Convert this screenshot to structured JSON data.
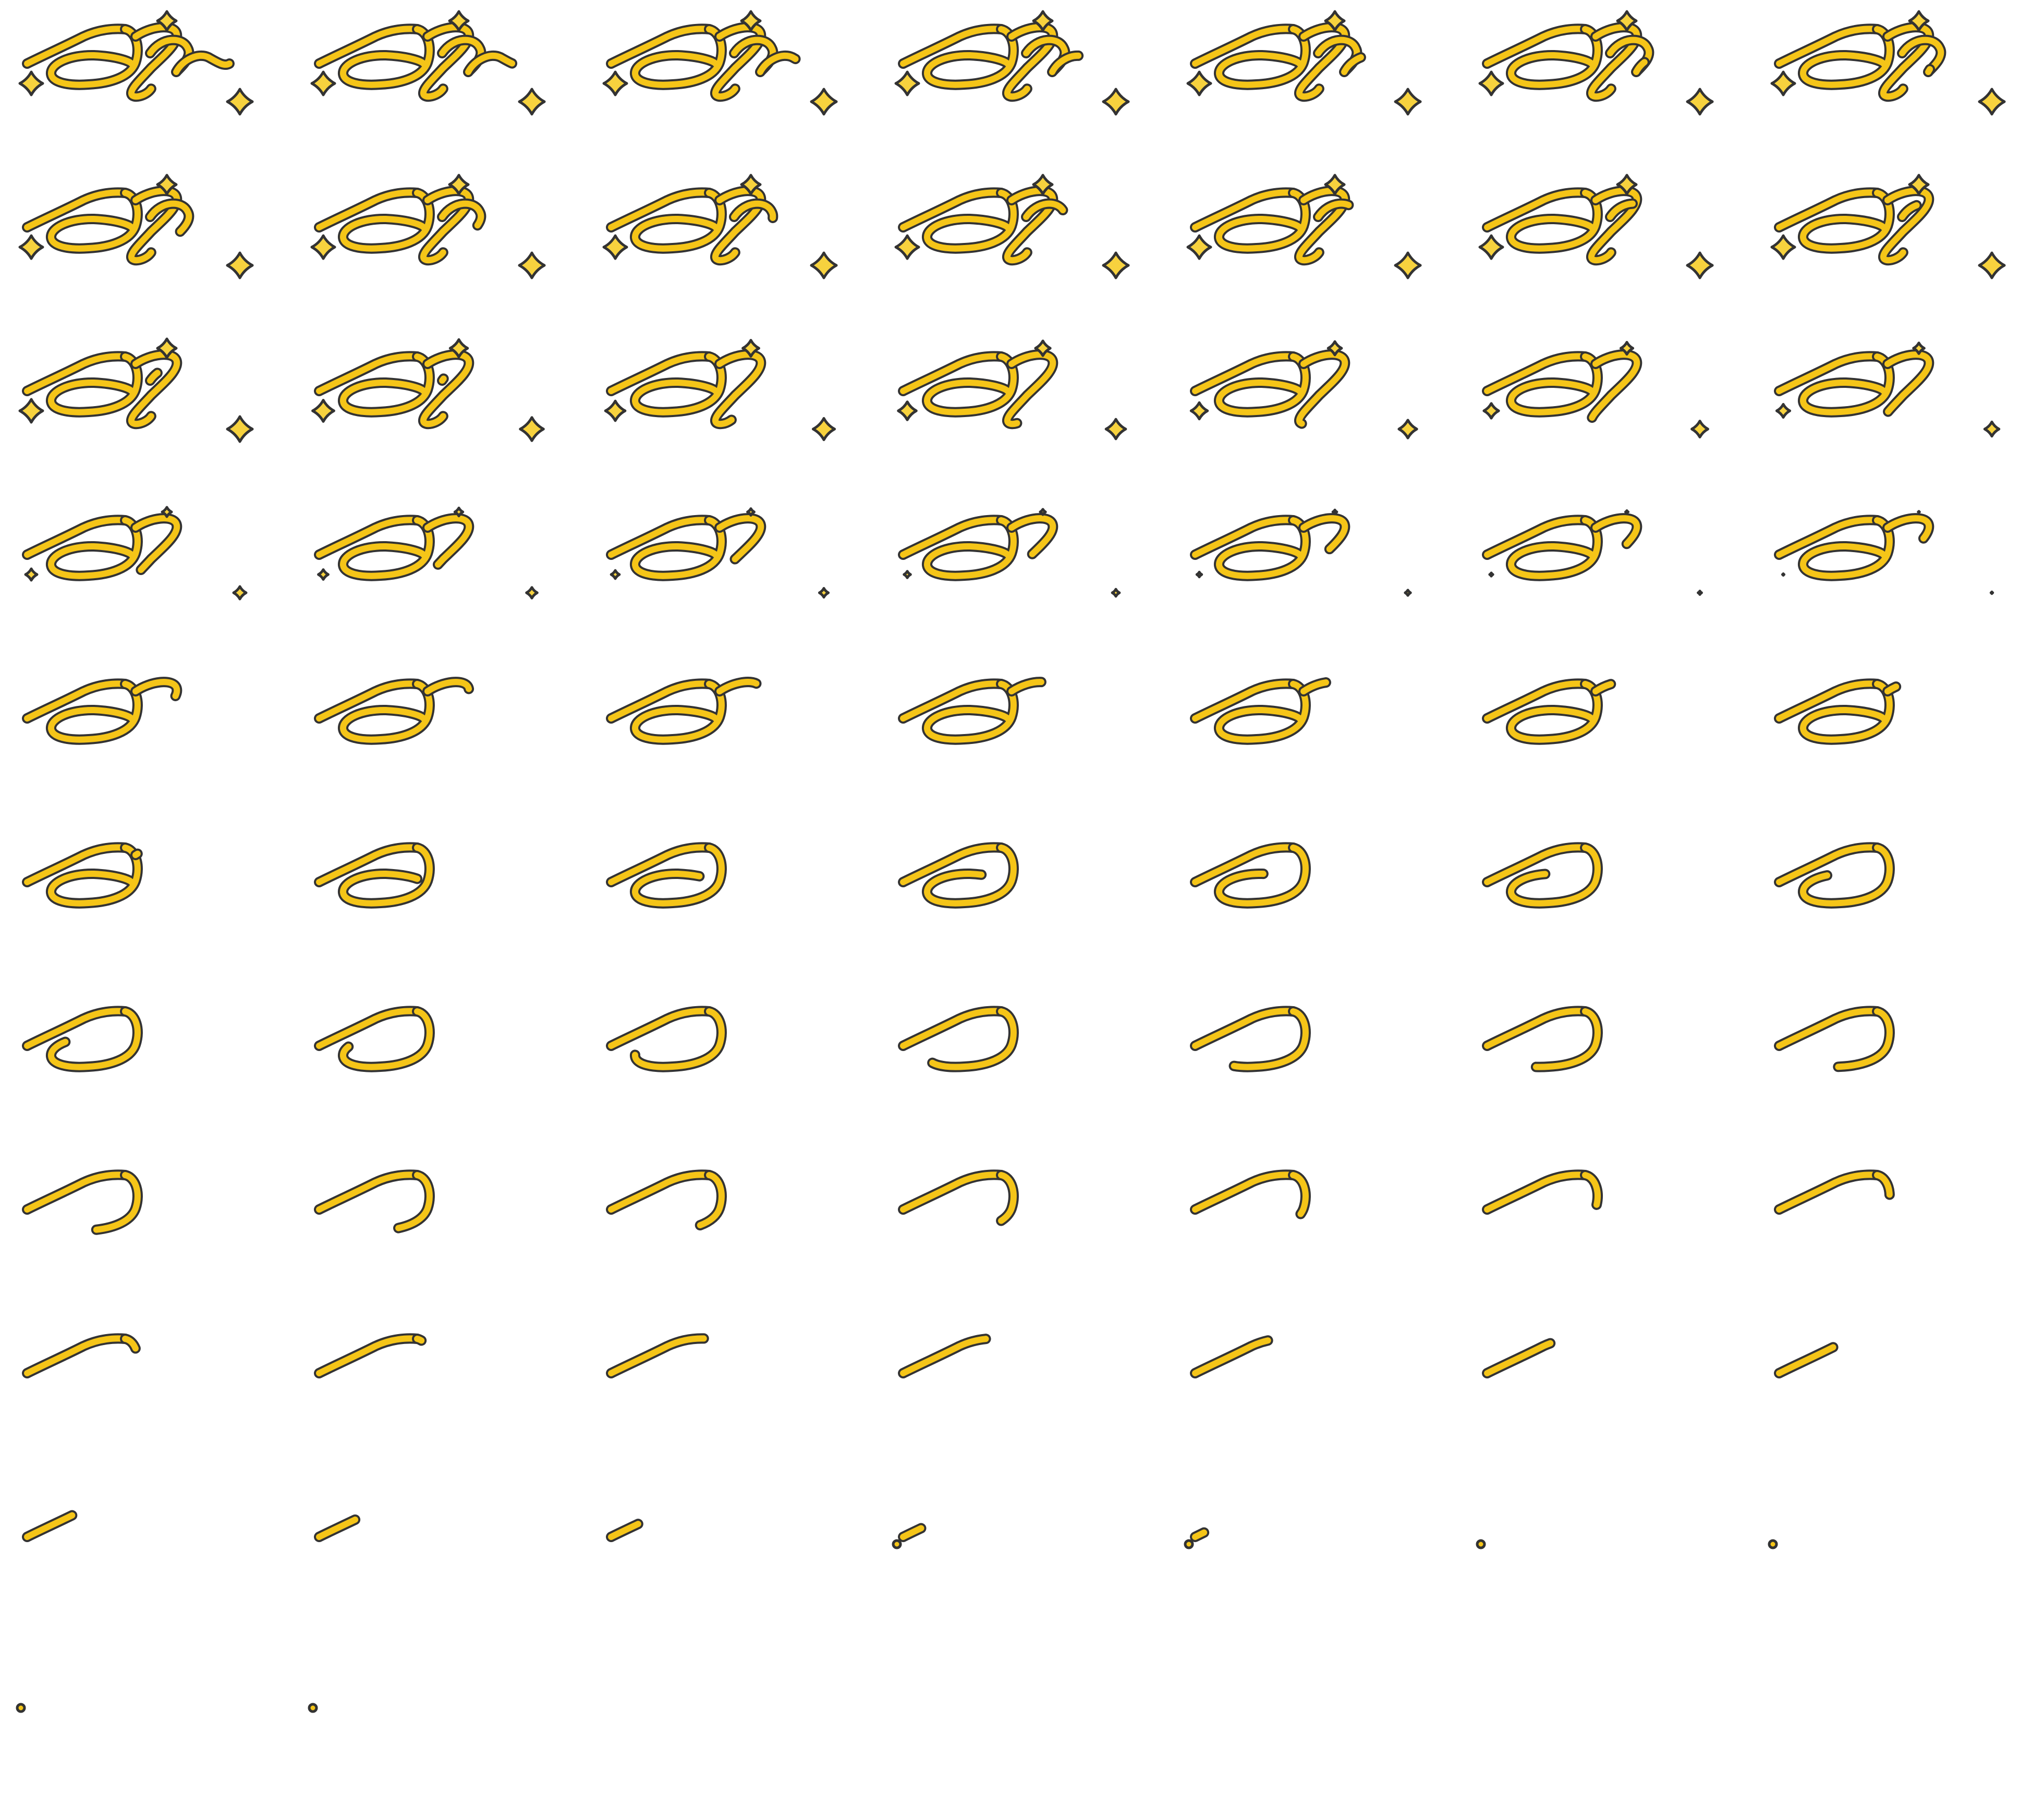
{
  "sheet": {
    "title": "",
    "columns": 7,
    "frame_count": 72,
    "fill_color": "#F5C518",
    "outline_color": "#333333",
    "sparkle_color": "#F7D23E",
    "background_color": "#FFFFFF"
  },
  "animation": {
    "description_kind": "handwritten-lettering-unwrite",
    "stroke_order": [
      "tail-s",
      "stem-j",
      "loop-o",
      "swoosh"
    ],
    "sparkles": [
      {
        "name": "left-sparkle-icon"
      },
      {
        "name": "top-sparkle-icon"
      },
      {
        "name": "right-sparkle-icon"
      }
    ]
  }
}
